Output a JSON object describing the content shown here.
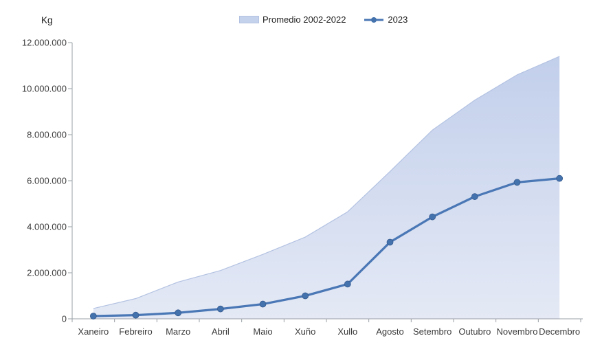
{
  "figure": {
    "y_axis_unit_label": "Kg"
  },
  "legend": {
    "items": [
      {
        "label": "Promedio 2002-2022",
        "type": "area"
      },
      {
        "label": "2023",
        "type": "line"
      }
    ]
  },
  "chart_data": {
    "type": "combo",
    "subtypes": [
      "area",
      "line"
    ],
    "title": "",
    "xlabel": "",
    "ylabel": "Kg",
    "categories": [
      "Xaneiro",
      "Febreiro",
      "Marzo",
      "Abril",
      "Maio",
      "Xuño",
      "Xullo",
      "Agosto",
      "Setembro",
      "Outubro",
      "Novembro",
      "Decembro"
    ],
    "series": [
      {
        "name": "Promedio 2002-2022",
        "type": "area",
        "values": [
          450000,
          880000,
          1600000,
          2100000,
          2800000,
          3550000,
          4650000,
          6400000,
          8200000,
          9500000,
          10600000,
          11400000
        ],
        "fill_top_color": "#c2cfeb",
        "fill_bottom_color": "#e4e9f5",
        "edge_color": "#b3c2e2",
        "legend_swatch_color": "#c5d2ec"
      },
      {
        "name": "2023",
        "type": "line",
        "values": [
          120000,
          160000,
          260000,
          430000,
          640000,
          1000000,
          1510000,
          3330000,
          4430000,
          5310000,
          5930000,
          6100000
        ],
        "line_color": "#4a77b5",
        "marker_color": "#4472ad",
        "marker_edge_color": "#35598c"
      }
    ],
    "ylim": [
      0,
      12000000
    ],
    "y_tick_values": [
      0,
      2000000,
      4000000,
      6000000,
      8000000,
      10000000,
      12000000
    ],
    "y_tick_labels": [
      "0",
      "2.000.000",
      "4.000.000",
      "6.000.000",
      "8.000.000",
      "10.000.000",
      "12.000.000"
    ],
    "grid": false,
    "legend_position": "top-center",
    "axis_color": "#9aa0a6",
    "tick_label_color": "#3a3a3a"
  }
}
